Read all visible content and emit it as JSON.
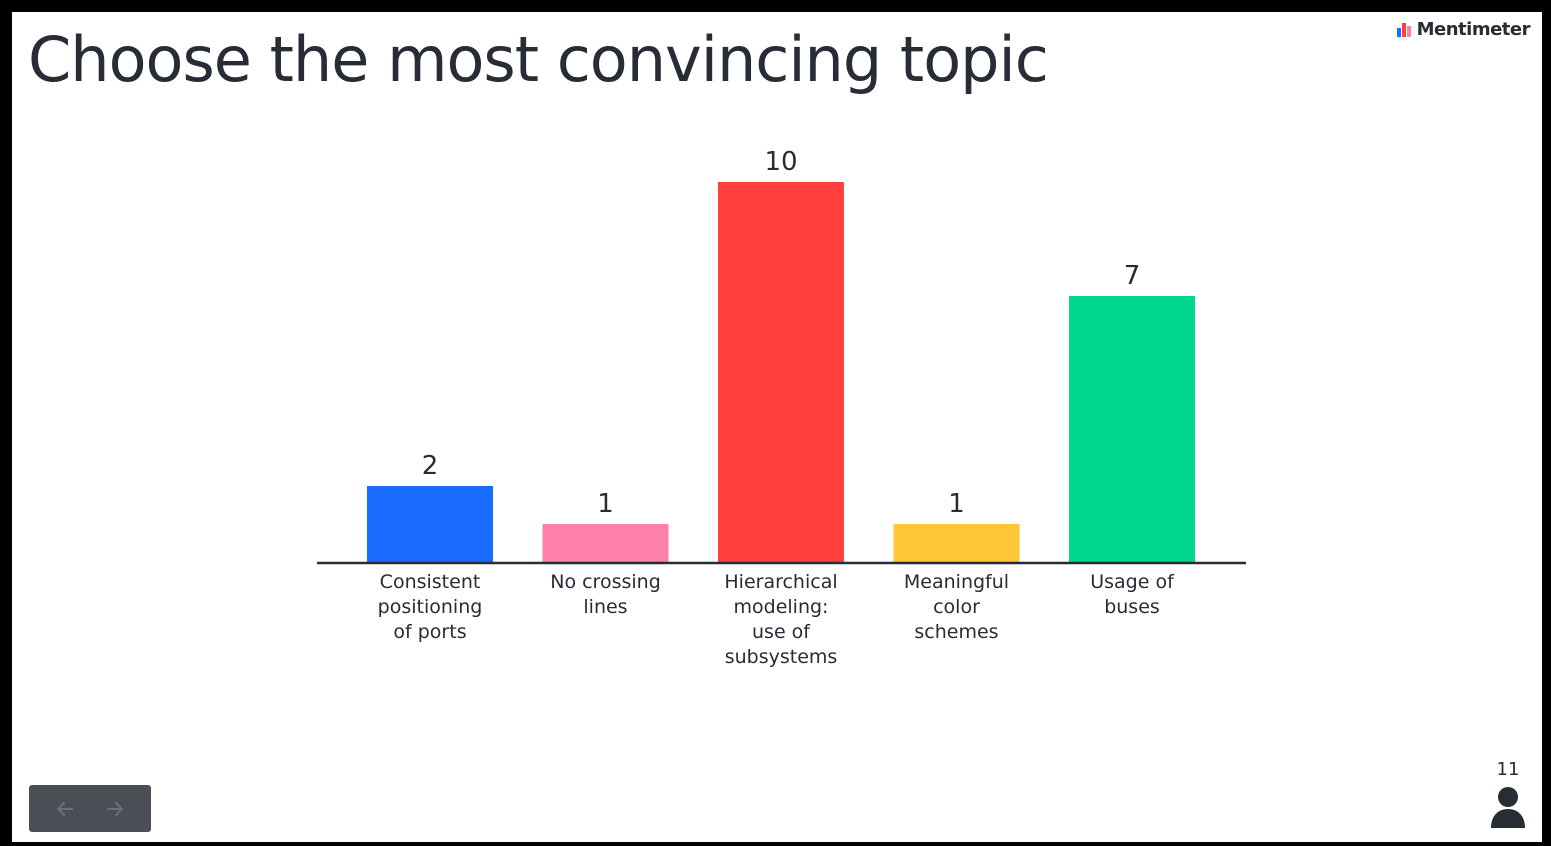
{
  "slide": {
    "title": "Choose the most convincing topic",
    "brand": {
      "name": "Mentimeter",
      "logo_icon": "mentimeter-logo-icon"
    }
  },
  "footer": {
    "navigation": {
      "prev_icon": "arrow-left-icon",
      "next_icon": "arrow-right-icon"
    },
    "participants": {
      "count": "11",
      "icon": "person-icon"
    }
  },
  "chart_data": {
    "type": "bar",
    "categories": [
      [
        "Consistent",
        "positioning",
        "of ports"
      ],
      [
        "No crossing",
        "lines"
      ],
      [
        "Hierarchical",
        "modeling:",
        "use of",
        "subsystems"
      ],
      [
        "Meaningful",
        "color",
        "schemes"
      ],
      [
        "Usage of",
        "buses"
      ]
    ],
    "values": [
      2,
      1,
      10,
      1,
      7
    ],
    "value_labels": [
      "2",
      "1",
      "10",
      "1",
      "7"
    ],
    "colors": [
      "#196cff",
      "#ff80ab",
      "#ff403d",
      "#ffc738",
      "#00d890"
    ],
    "title": "",
    "xlabel": "",
    "ylabel": "",
    "ylim": [
      0,
      10
    ],
    "grid": false,
    "legend": "none"
  }
}
